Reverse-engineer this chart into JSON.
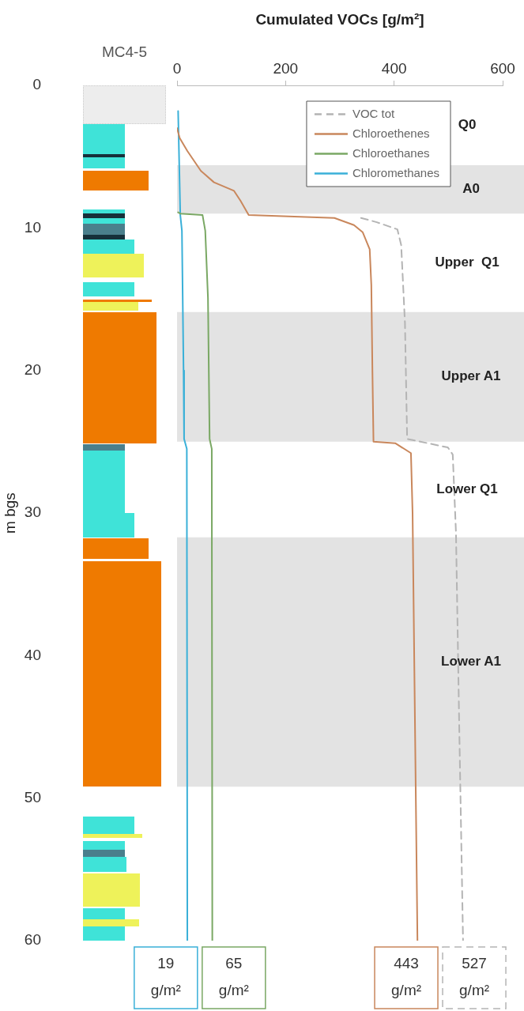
{
  "chart_data": {
    "type": "line",
    "orientation": "horizontal",
    "x2label": "Cumulated VOCs [g/m²]",
    "ylabel": "m bgs",
    "x2lim": [
      0,
      600
    ],
    "x2ticks": [
      0,
      200,
      400,
      600
    ],
    "ylim": [
      60,
      0
    ],
    "yticks": [
      0,
      10,
      20,
      30,
      40,
      50,
      60
    ],
    "legend": "top right",
    "marker": "none",
    "series": [
      {
        "name": "VOC tot",
        "axis": "x2",
        "color": "#b4b4b4",
        "line_style": "dashed",
        "x": [
          9.3,
          9.6,
          10.1,
          11.2,
          16.7,
          24.8,
          25.4,
          25.9,
          31.4,
          45,
          60
        ],
        "values": [
          339,
          368,
          406,
          413,
          420,
          424,
          499,
          508,
          514,
          520,
          527
        ],
        "value_labels": [
          null,
          null,
          null,
          null,
          null,
          null,
          null,
          null,
          null,
          null,
          "527 g/m²"
        ]
      },
      {
        "name": "Chloroethenes",
        "axis": "x2",
        "color": "#c9875c",
        "x": [
          3.0,
          3.7,
          4.6,
          6.0,
          6.8,
          7.4,
          8.1,
          9.1,
          9.3,
          9.8,
          10.3,
          11.5,
          14,
          20,
          25.0,
          25.1,
          25.8,
          30,
          40,
          50,
          60
        ],
        "values": [
          0,
          5,
          19,
          44,
          68,
          105,
          117,
          132,
          290,
          326,
          342,
          355,
          358,
          360,
          362,
          402,
          431,
          434,
          437,
          440,
          443
        ],
        "value_labels": [
          null,
          null,
          null,
          null,
          null,
          null,
          null,
          null,
          null,
          null,
          null,
          null,
          null,
          null,
          null,
          null,
          null,
          null,
          null,
          null,
          "443 g/m²"
        ]
      },
      {
        "name": "Chloroethanes",
        "axis": "x2",
        "color": "#7aa864",
        "x": [
          8.9,
          9.0,
          9.1,
          10.2,
          14.9,
          24.8,
          25.5,
          60
        ],
        "values": [
          2,
          6,
          47,
          52,
          57,
          60,
          64,
          65
        ],
        "value_labels": [
          null,
          null,
          null,
          null,
          null,
          null,
          null,
          "65 g/m²"
        ]
      },
      {
        "name": "Chloromethanes",
        "axis": "x2",
        "color": "#3ab0d8",
        "x": [
          1.8,
          9.1,
          10.2,
          20,
          24.8,
          25.5,
          60
        ],
        "values": [
          2,
          6,
          9,
          12,
          13,
          18,
          19
        ],
        "value_labels": [
          null,
          null,
          null,
          null,
          null,
          null,
          "19 g/m²"
        ]
      }
    ],
    "bands": [
      {
        "axis": "y",
        "from": 5.6,
        "to": 9.0,
        "label": "A0",
        "color": "#e3e3e3"
      },
      {
        "axis": "y",
        "from": 15.9,
        "to": 25.0,
        "label": "Upper A1",
        "color": "#e3e3e3"
      },
      {
        "axis": "y",
        "from": 31.7,
        "to": 49.2,
        "label": "Lower A1",
        "color": "#e3e3e3"
      }
    ],
    "annotations": [
      "MC4-5",
      "Q0",
      "Upper  Q1",
      "Lower Q1"
    ]
  }
}
